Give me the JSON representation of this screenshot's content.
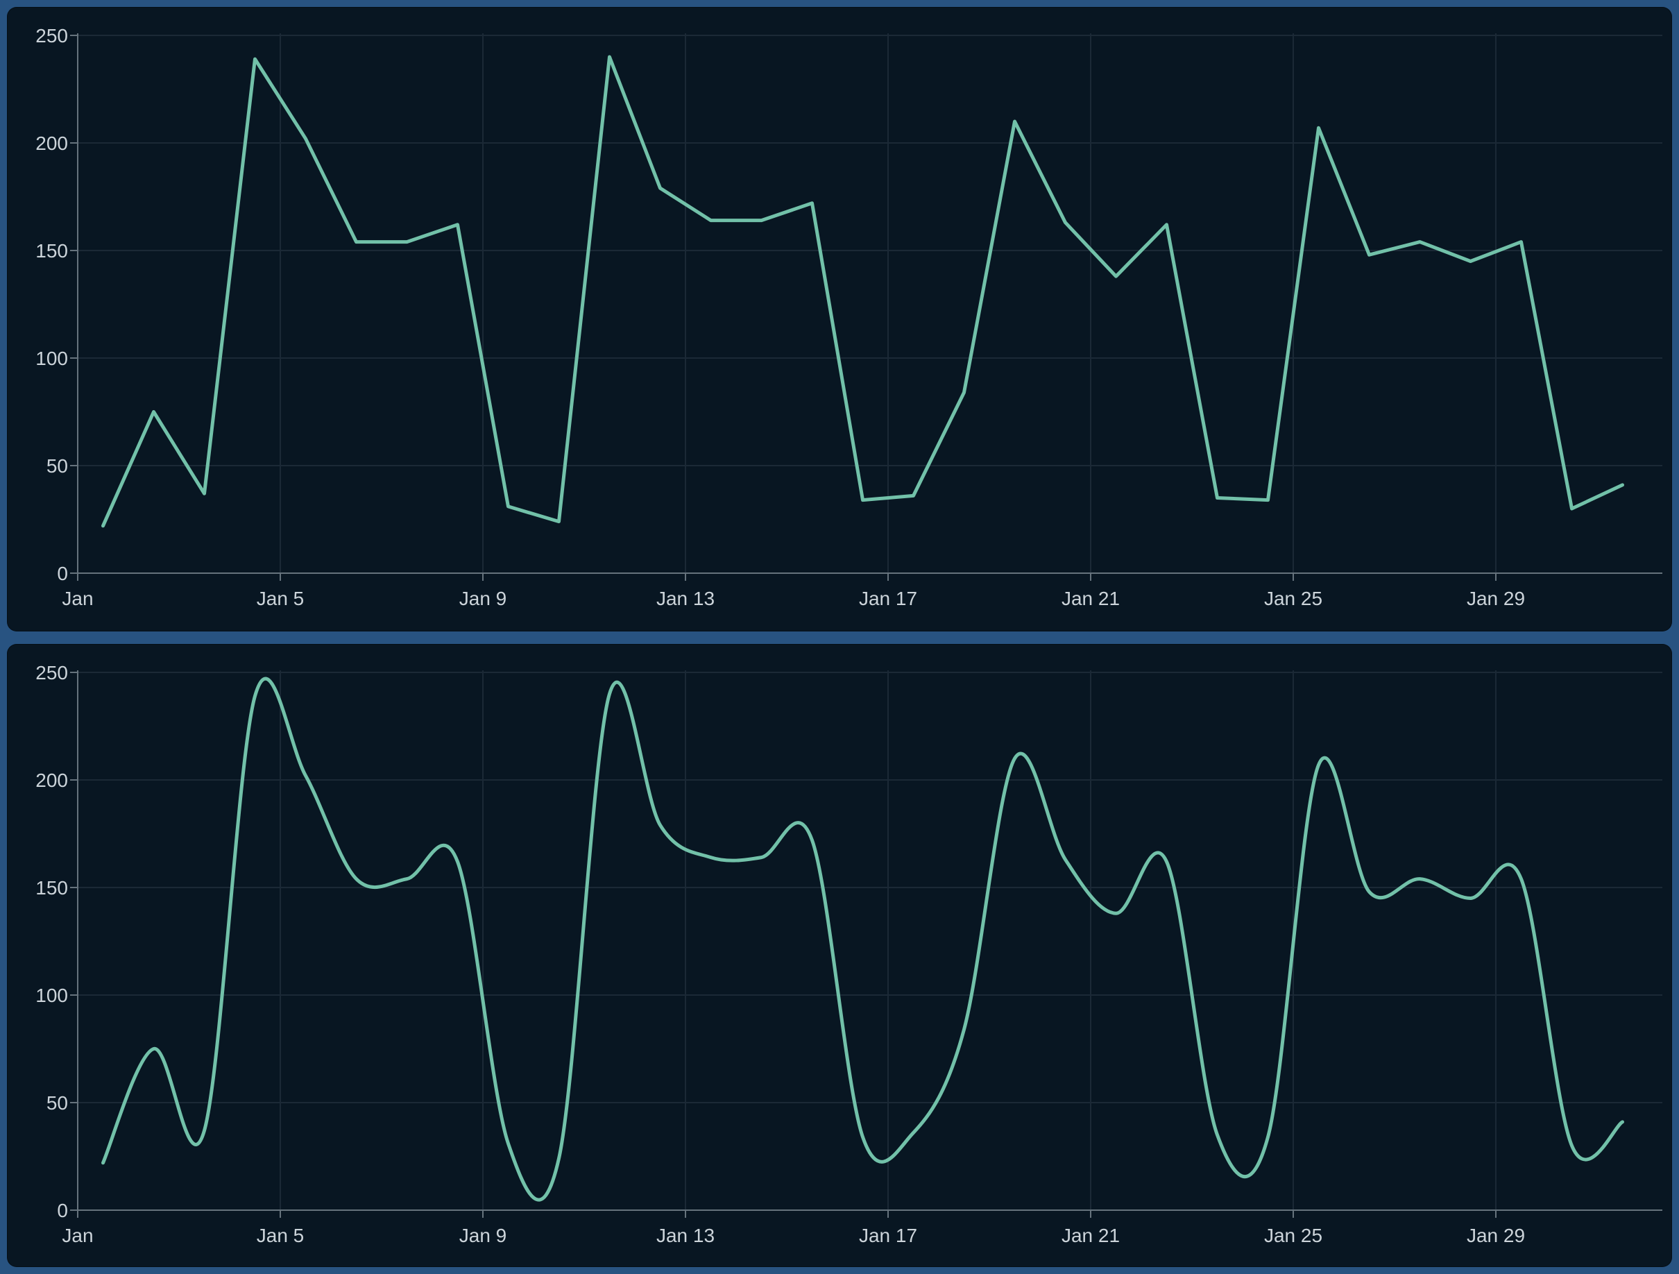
{
  "colors": {
    "frame_blue": "#285381",
    "panel_background": "#081622",
    "line_teal": "#72c1a9",
    "grid_line": "#1b2936",
    "axis_line": "#66737d",
    "tick_label": "#ccd4da"
  },
  "chart_data": [
    {
      "type": "line",
      "interpolation": "linear",
      "title": "",
      "xlabel": "",
      "ylabel": "",
      "x": [
        "Jan 1",
        "Jan 2",
        "Jan 3",
        "Jan 4",
        "Jan 5",
        "Jan 6",
        "Jan 7",
        "Jan 8",
        "Jan 9",
        "Jan 10",
        "Jan 11",
        "Jan 12",
        "Jan 13",
        "Jan 14",
        "Jan 15",
        "Jan 16",
        "Jan 17",
        "Jan 18",
        "Jan 19",
        "Jan 20",
        "Jan 21",
        "Jan 22",
        "Jan 23",
        "Jan 24",
        "Jan 25",
        "Jan 26",
        "Jan 27",
        "Jan 28",
        "Jan 29",
        "Jan 30",
        "Jan 31"
      ],
      "values": [
        22,
        75,
        37,
        239,
        202,
        154,
        154,
        162,
        31,
        24,
        240,
        179,
        164,
        164,
        172,
        34,
        36,
        84,
        210,
        163,
        138,
        162,
        35,
        34,
        207,
        148,
        154,
        145,
        154,
        30,
        41
      ],
      "xticks": [
        {
          "day": 1,
          "label": "Jan"
        },
        {
          "day": 5,
          "label": "Jan 5"
        },
        {
          "day": 9,
          "label": "Jan 9"
        },
        {
          "day": 13,
          "label": "Jan 13"
        },
        {
          "day": 17,
          "label": "Jan 17"
        },
        {
          "day": 21,
          "label": "Jan 21"
        },
        {
          "day": 25,
          "label": "Jan 25"
        },
        {
          "day": 29,
          "label": "Jan 29"
        }
      ],
      "yticks": [
        0,
        50,
        100,
        150,
        200,
        250
      ],
      "ylim": [
        0,
        250
      ],
      "grid": true,
      "legend": false
    },
    {
      "type": "line",
      "interpolation": "spline",
      "title": "",
      "xlabel": "",
      "ylabel": "",
      "x": [
        "Jan 1",
        "Jan 2",
        "Jan 3",
        "Jan 4",
        "Jan 5",
        "Jan 6",
        "Jan 7",
        "Jan 8",
        "Jan 9",
        "Jan 10",
        "Jan 11",
        "Jan 12",
        "Jan 13",
        "Jan 14",
        "Jan 15",
        "Jan 16",
        "Jan 17",
        "Jan 18",
        "Jan 19",
        "Jan 20",
        "Jan 21",
        "Jan 22",
        "Jan 23",
        "Jan 24",
        "Jan 25",
        "Jan 26",
        "Jan 27",
        "Jan 28",
        "Jan 29",
        "Jan 30",
        "Jan 31"
      ],
      "values": [
        22,
        75,
        37,
        239,
        202,
        154,
        154,
        162,
        31,
        24,
        240,
        179,
        164,
        164,
        172,
        34,
        36,
        84,
        210,
        163,
        138,
        162,
        35,
        34,
        207,
        148,
        154,
        145,
        154,
        30,
        41
      ],
      "xticks": [
        {
          "day": 1,
          "label": "Jan"
        },
        {
          "day": 5,
          "label": "Jan 5"
        },
        {
          "day": 9,
          "label": "Jan 9"
        },
        {
          "day": 13,
          "label": "Jan 13"
        },
        {
          "day": 17,
          "label": "Jan 17"
        },
        {
          "day": 21,
          "label": "Jan 21"
        },
        {
          "day": 25,
          "label": "Jan 25"
        },
        {
          "day": 29,
          "label": "Jan 29"
        }
      ],
      "yticks": [
        0,
        50,
        100,
        150,
        200,
        250
      ],
      "ylim": [
        0,
        250
      ],
      "grid": true,
      "legend": false
    }
  ]
}
